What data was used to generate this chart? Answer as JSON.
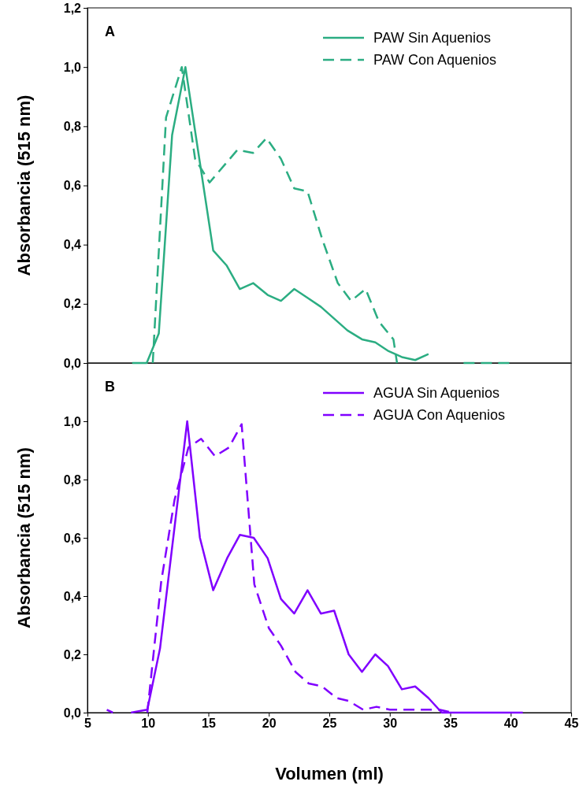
{
  "chart_data": [
    {
      "type": "line",
      "ylabel": "Absorbancia (515 nm)",
      "annotations": [
        "A"
      ],
      "legend": "top right",
      "tick_labels": "y",
      "xlim": [
        5,
        45
      ],
      "xticks": [
        5,
        10,
        15,
        20,
        25,
        30,
        35,
        40,
        45
      ],
      "ylim": [
        0,
        1.2
      ],
      "yticks": [
        {
          "value": 0,
          "label": "0,0"
        },
        {
          "value": 0.2,
          "label": "0,2"
        },
        {
          "value": 0.4,
          "label": "0,4"
        },
        {
          "value": 0.6,
          "label": "0,6"
        },
        {
          "value": 0.8,
          "label": "0,8"
        },
        {
          "value": 1,
          "label": "1,0"
        },
        {
          "value": 1.2,
          "label": "1,2"
        }
      ],
      "series": [
        {
          "name": "PAW Sin Aquenios",
          "color": "#2bad82",
          "line_style": "solid",
          "x": [
            8.7,
            9.9,
            10.9,
            12.0,
            13.1,
            15.4,
            16.5,
            17.6,
            18.7,
            19.9,
            21.0,
            22.1,
            23.2,
            24.3,
            25.4,
            26.5,
            27.7,
            28.8,
            29.9,
            31.0,
            32.1,
            33.2
          ],
          "values": [
            0,
            0,
            0.1,
            0.77,
            1.0,
            0.38,
            0.33,
            0.25,
            0.27,
            0.23,
            0.21,
            0.25,
            0.22,
            0.19,
            0.15,
            0.11,
            0.08,
            0.07,
            0.04,
            0.02,
            0.01,
            0.03
          ]
        },
        {
          "name": "PAW Con Aquenios",
          "color": "#2bad82",
          "line_style": "dashed",
          "x": [
            10.4,
            11.5,
            12.8,
            13.9,
            15.1,
            17.4,
            18.7,
            19.8,
            21.0,
            22.1,
            23.2,
            24.4,
            25.7,
            26.8,
            28.0,
            29.1,
            30.3,
            30.6,
            null,
            36.1,
            40.0
          ],
          "values": [
            0,
            0.83,
            1.0,
            0.69,
            0.61,
            0.72,
            0.71,
            0.76,
            0.69,
            0.59,
            0.58,
            0.42,
            0.27,
            0.21,
            0.25,
            0.14,
            0.08,
            0,
            null,
            0,
            0
          ]
        }
      ]
    },
    {
      "type": "line",
      "xlabel": "Volumen (ml)",
      "ylabel": "Absorbancia (515 nm)",
      "annotations": [
        "B"
      ],
      "legend": "top right",
      "xlim": [
        5,
        45
      ],
      "xticks": [
        5,
        10,
        15,
        20,
        25,
        30,
        35,
        40,
        45
      ],
      "ylim": [
        0,
        1.2
      ],
      "yticks": [
        {
          "value": 0,
          "label": "0,0"
        },
        {
          "value": 0.2,
          "label": "0,2"
        },
        {
          "value": 0.4,
          "label": "0,4"
        },
        {
          "value": 0.6,
          "label": "0,6"
        },
        {
          "value": 0.8,
          "label": "0,8"
        },
        {
          "value": 1,
          "label": "1,0"
        }
      ],
      "series": [
        {
          "name": "AGUA Sin Aquenios",
          "color": "#8000ff",
          "line_style": "solid",
          "x": [
            8.6,
            9.95,
            11.0,
            13.25,
            14.3,
            15.4,
            16.55,
            17.6,
            18.75,
            19.9,
            21.0,
            22.1,
            23.2,
            24.3,
            25.4,
            26.6,
            27.7,
            28.8,
            29.85,
            31.0,
            32.1,
            33.2,
            34.3,
            41.0
          ],
          "values": [
            0,
            0.01,
            0.22,
            1.0,
            0.6,
            0.42,
            0.53,
            0.61,
            0.6,
            0.53,
            0.39,
            0.34,
            0.42,
            0.34,
            0.35,
            0.2,
            0.14,
            0.2,
            0.16,
            0.08,
            0.09,
            0.05,
            0,
            0
          ]
        },
        {
          "name": "AGUA Con Aquenios",
          "color": "#8000ff",
          "line_style": "dashed",
          "x": [
            6.6,
            7.1,
            null,
            9.95,
            11.1,
            12.2,
            13.35,
            14.4,
            15.55,
            16.7,
            17.75,
            18.8,
            20.0,
            21.0,
            22.2,
            23.3,
            24.4,
            25.6,
            26.6,
            27.8,
            28.9,
            30.0,
            34.1,
            35.2
          ],
          "values": [
            0.01,
            0,
            null,
            0,
            0.45,
            0.73,
            0.91,
            0.94,
            0.88,
            0.91,
            0.99,
            0.44,
            0.29,
            0.23,
            0.14,
            0.1,
            0.09,
            0.05,
            0.04,
            0.01,
            0.02,
            0.01,
            0.01,
            0
          ]
        }
      ]
    }
  ]
}
